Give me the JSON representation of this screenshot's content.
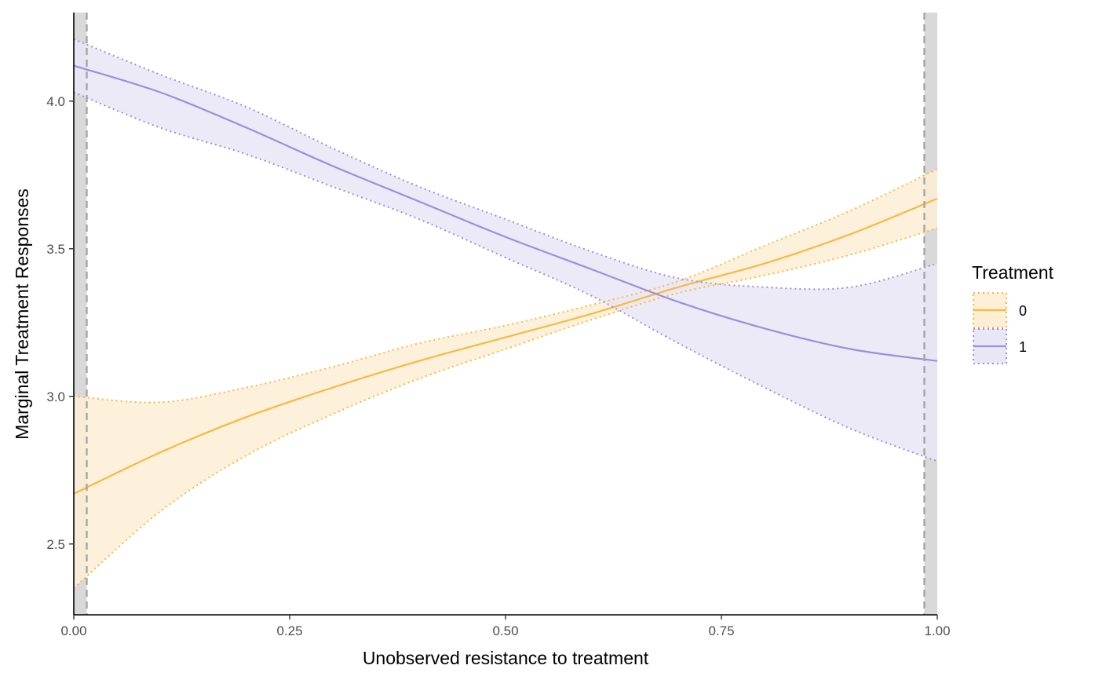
{
  "chart_data": {
    "type": "line",
    "title": "",
    "xlabel": "Unobserved resistance to treatment",
    "ylabel": "Marginal Treatment Responses",
    "xlim": [
      0,
      1
    ],
    "ylim": [
      2.26,
      4.3
    ],
    "x_ticks": [
      0,
      0.25,
      0.5,
      0.75,
      1
    ],
    "x_tick_labels": [
      "0.00",
      "0.25",
      "0.50",
      "0.75",
      "1.00"
    ],
    "y_ticks": [
      2.5,
      3.0,
      3.5,
      4.0
    ],
    "y_tick_labels": [
      "2.5",
      "3.0",
      "3.5",
      "4.0"
    ],
    "grid": false,
    "trimmed_regions": [
      [
        0,
        0.015
      ],
      [
        0.985,
        1.0
      ]
    ],
    "vertical_lines": [
      0.015,
      0.985
    ],
    "legend": {
      "title": "Treatment",
      "position": "right"
    },
    "x": [
      0,
      0.1,
      0.2,
      0.3,
      0.4,
      0.5,
      0.6,
      0.7,
      0.8,
      0.9,
      1.0
    ],
    "series": [
      {
        "name": "0",
        "color": "#f5b942",
        "fill": "#fdefd5",
        "y": [
          2.67,
          2.81,
          2.93,
          3.03,
          3.12,
          3.2,
          3.28,
          3.37,
          3.45,
          3.55,
          3.67
        ],
        "lower": [
          2.35,
          2.61,
          2.8,
          2.94,
          3.06,
          3.16,
          3.26,
          3.35,
          3.41,
          3.48,
          3.57
        ],
        "upper": [
          3.0,
          2.98,
          3.03,
          3.1,
          3.18,
          3.24,
          3.31,
          3.39,
          3.51,
          3.63,
          3.77
        ]
      },
      {
        "name": "1",
        "color": "#9b8fdb",
        "fill": "#e9e6f6",
        "y": [
          4.12,
          4.03,
          3.91,
          3.78,
          3.66,
          3.54,
          3.43,
          3.32,
          3.23,
          3.16,
          3.12
        ],
        "lower": [
          4.03,
          3.91,
          3.82,
          3.71,
          3.6,
          3.47,
          3.34,
          3.18,
          3.03,
          2.89,
          2.78
        ],
        "upper": [
          4.21,
          4.09,
          3.98,
          3.84,
          3.71,
          3.6,
          3.49,
          3.4,
          3.37,
          3.37,
          3.45
        ]
      }
    ]
  }
}
